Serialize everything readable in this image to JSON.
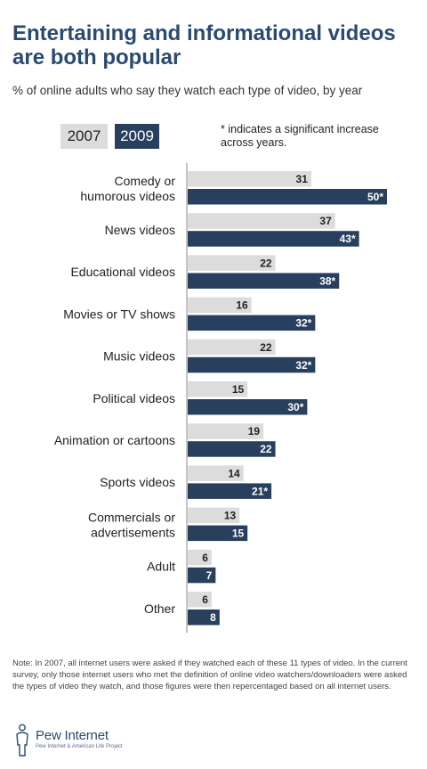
{
  "title": "Entertaining and informational videos are both popular",
  "subtitle": "% of online adults who say they watch each type of video, by year",
  "legend": {
    "label_2007": "2007",
    "label_2009": "2009",
    "note": "* indicates a significant increase across years."
  },
  "footnote": "Note: In 2007, all internet users were asked if they watched each of these 11 types of video.  In the current survey, only those internet users who met the definition of online video watchers/downloaders were asked the types of video they watch, and those figures were then repercentaged based on all internet users.",
  "logo": {
    "name": "Pew Internet",
    "tagline": "Pew Internet & American Life Project"
  },
  "colors": {
    "series_2007": "#dcdcdc",
    "series_2009": "#293f5e",
    "title": "#2b4a73"
  },
  "chart_data": {
    "type": "bar",
    "orientation": "horizontal",
    "categories": [
      "Comedy or humorous videos",
      "News videos",
      "Educational videos",
      "Movies or TV shows",
      "Music videos",
      "Political videos",
      "Animation or cartoons",
      "Sports videos",
      "Commercials or advertisements",
      "Adult",
      "Other"
    ],
    "series": [
      {
        "name": "2007",
        "values": [
          31,
          37,
          22,
          16,
          22,
          15,
          19,
          14,
          13,
          6,
          6
        ],
        "labels": [
          "31",
          "37",
          "22",
          "16",
          "22",
          "15",
          "19",
          "14",
          "13",
          "6",
          "6"
        ]
      },
      {
        "name": "2009",
        "values": [
          50,
          43,
          38,
          32,
          32,
          30,
          22,
          21,
          15,
          7,
          8
        ],
        "labels": [
          "50*",
          "43*",
          "38*",
          "32*",
          "32*",
          "30*",
          "22",
          "21*",
          "15",
          "7",
          "8"
        ]
      }
    ],
    "xlim": [
      0,
      50
    ],
    "grid": false
  }
}
